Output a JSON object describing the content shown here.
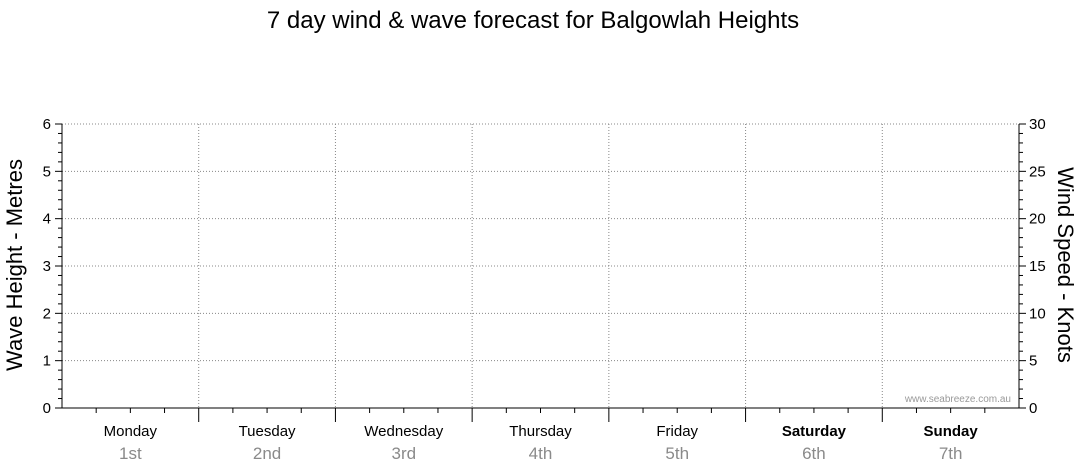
{
  "chart_data": {
    "type": "line",
    "title": "7 day wind & wave forecast for Balgowlah Heights",
    "y_left": {
      "label": "Wave Height - Metres",
      "range": [
        0,
        6
      ],
      "ticks": [
        "0",
        "1",
        "2",
        "3",
        "4",
        "5",
        "6"
      ]
    },
    "y_right": {
      "label": "Wind Speed - Knots",
      "range": [
        0,
        30
      ],
      "ticks": [
        "0",
        "5",
        "10",
        "15",
        "20",
        "25",
        "30"
      ]
    },
    "days": [
      {
        "name": "Monday",
        "date": "1st",
        "bold": false
      },
      {
        "name": "Tuesday",
        "date": "2nd",
        "bold": false
      },
      {
        "name": "Wednesday",
        "date": "3rd",
        "bold": false
      },
      {
        "name": "Thursday",
        "date": "4th",
        "bold": false
      },
      {
        "name": "Friday",
        "date": "5th",
        "bold": false
      },
      {
        "name": "Saturday",
        "date": "6th",
        "bold": true
      },
      {
        "name": "Sunday",
        "date": "7th",
        "bold": true
      }
    ],
    "series": [],
    "grid": true,
    "watermark": "www.seabreeze.com.au"
  }
}
